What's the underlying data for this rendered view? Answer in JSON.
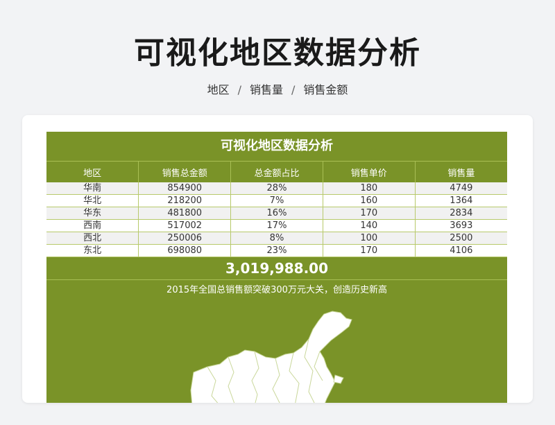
{
  "page": {
    "title": "可视化地区数据分析",
    "breadcrumb": [
      "地区",
      "销售量",
      "销售金额"
    ],
    "breadcrumb_sep": "/"
  },
  "sheet": {
    "title": "可视化地区数据分析",
    "headers": [
      "地区",
      "销售总金额",
      "总金额占比",
      "销售单价",
      "销售量"
    ],
    "rows": [
      [
        "华南",
        "854900",
        "28%",
        "180",
        "4749"
      ],
      [
        "华北",
        "218200",
        "7%",
        "160",
        "1364"
      ],
      [
        "华东",
        "481800",
        "16%",
        "170",
        "2834"
      ],
      [
        "西南",
        "517002",
        "17%",
        "140",
        "3693"
      ],
      [
        "西北",
        "250006",
        "8%",
        "100",
        "2500"
      ],
      [
        "东北",
        "698080",
        "23%",
        "170",
        "4106"
      ]
    ],
    "total": "3,019,988.00",
    "caption": "2015年全国总销售额突破300万元大关，创造历史新高"
  },
  "colors": {
    "accent": "#7a9328",
    "row_alt": "#f1f1f1",
    "background": "#f2f3f5"
  },
  "icons": {
    "map": "china-map-icon"
  }
}
